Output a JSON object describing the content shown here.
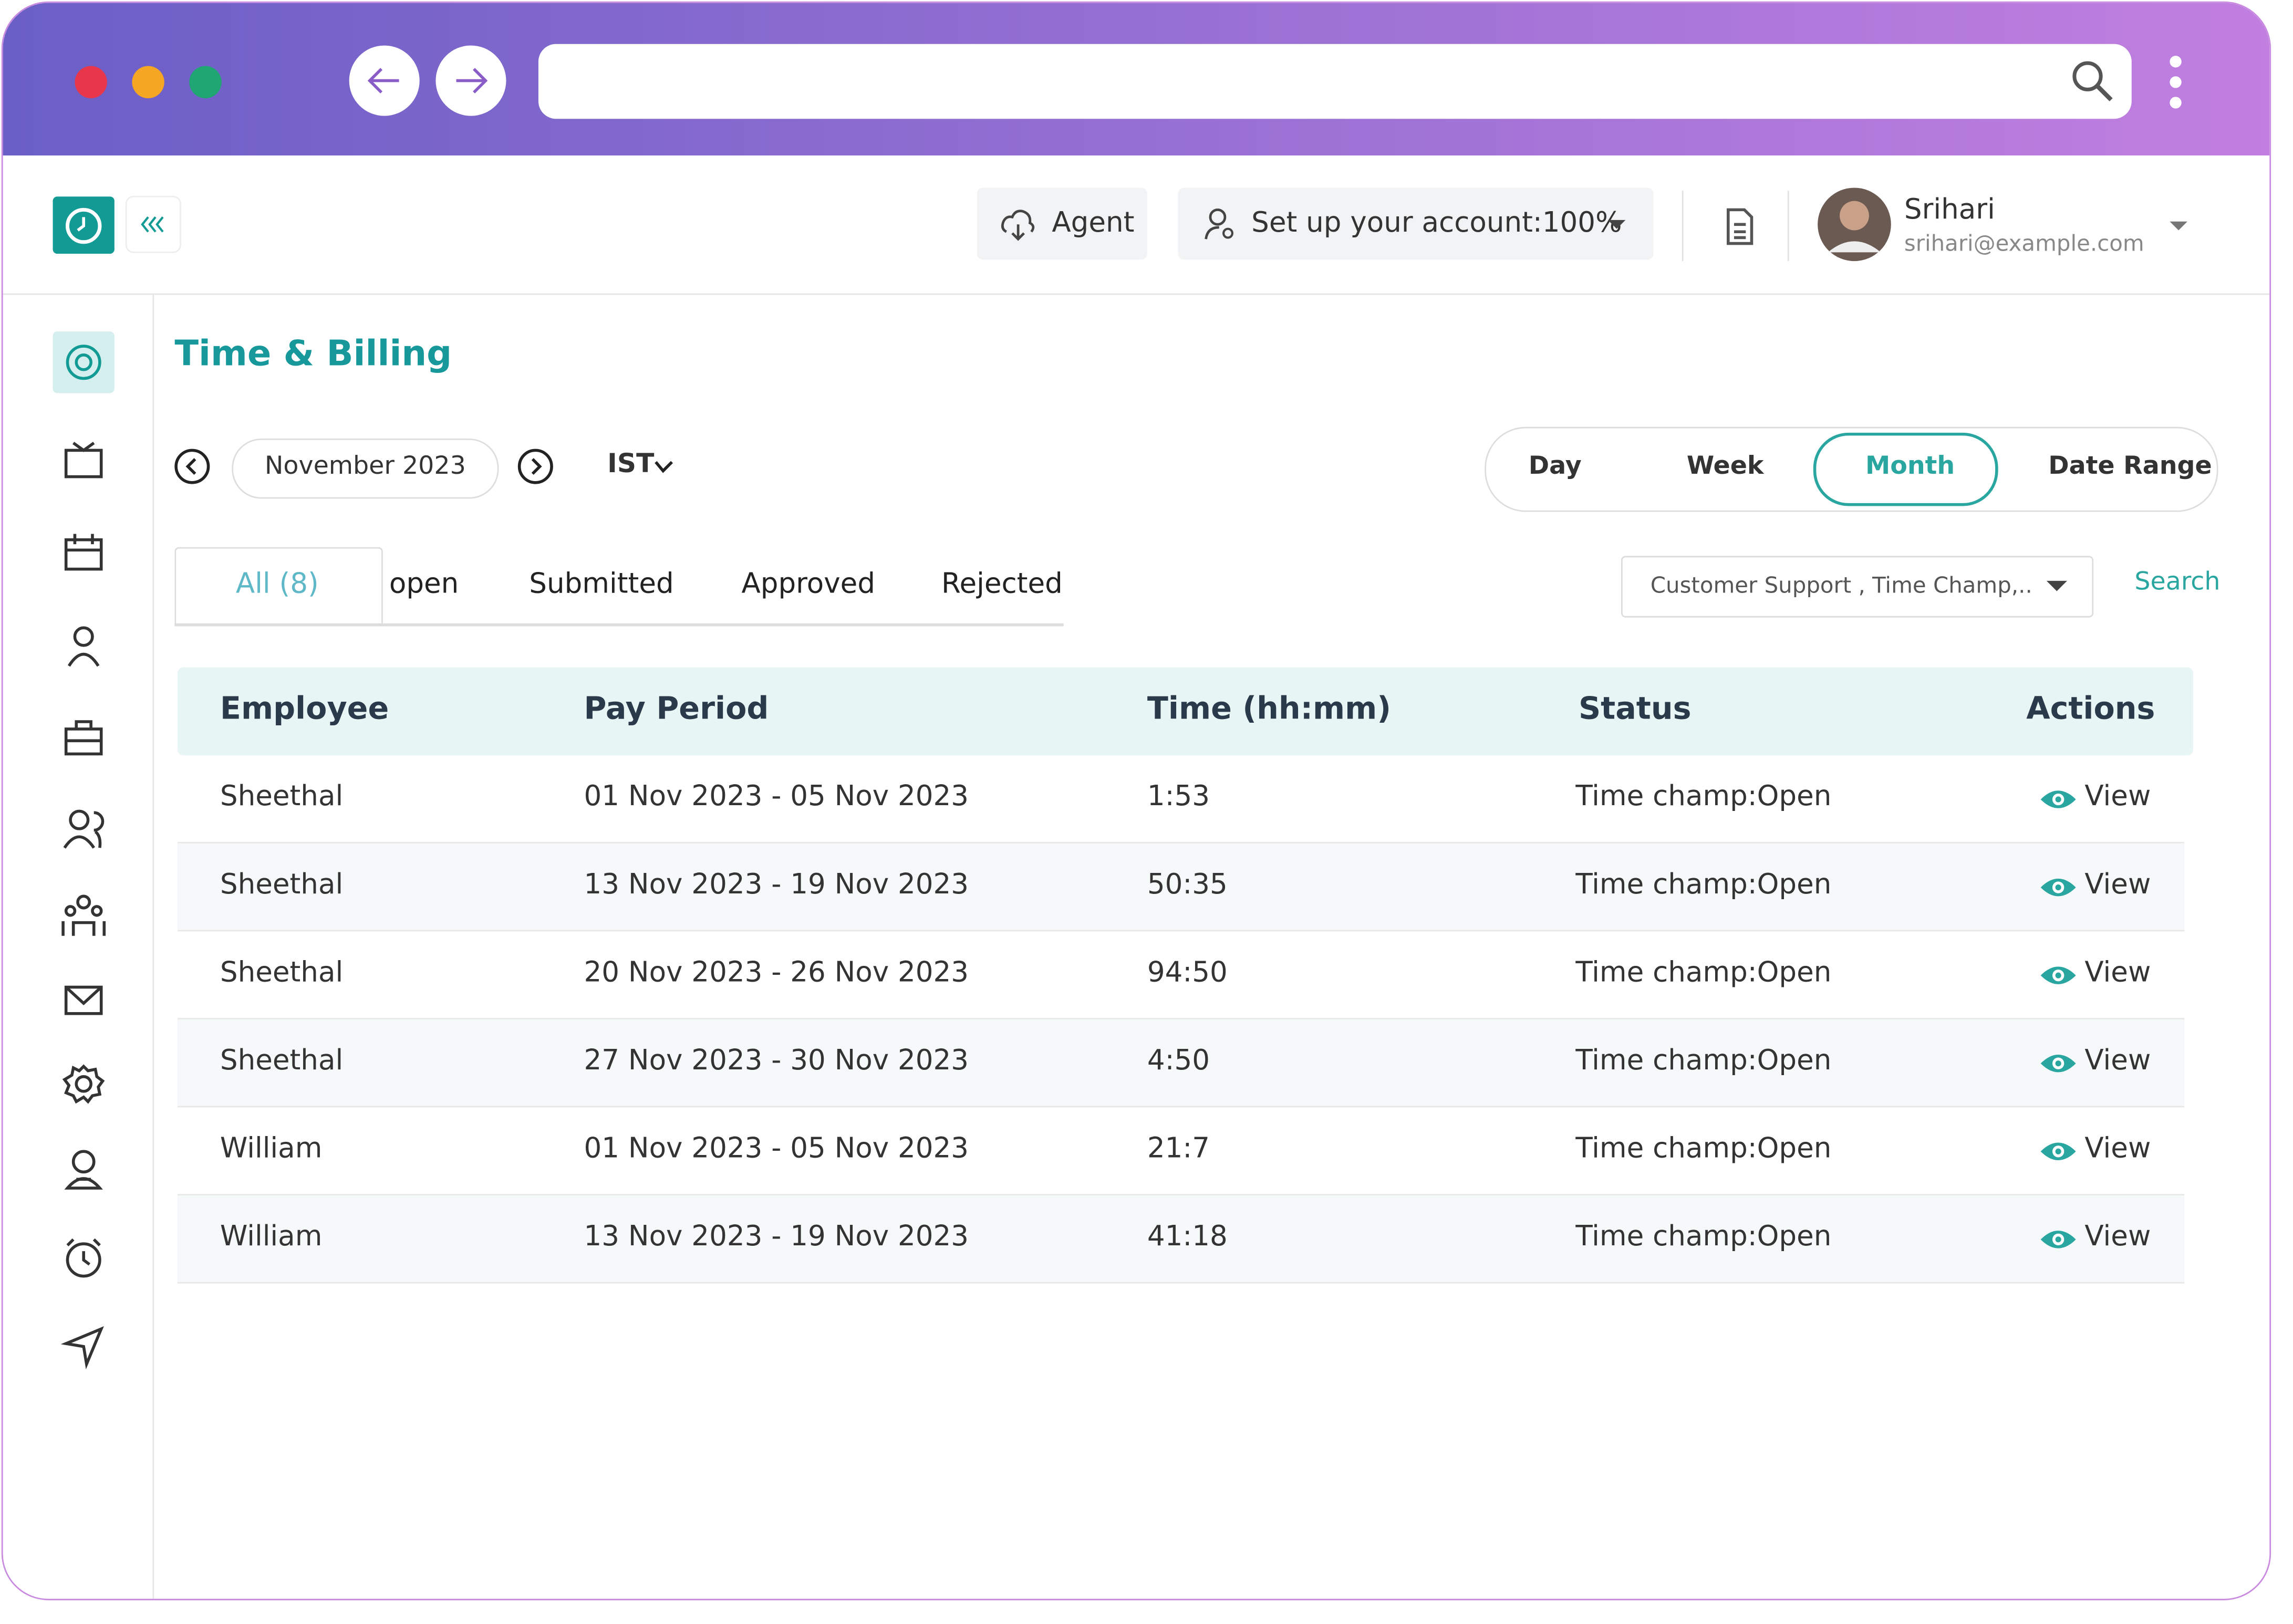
{
  "header": {
    "agent": "Agent",
    "setup": "Set up your account:100%",
    "user_name": "Srihari",
    "user_email": "srihari@example.com"
  },
  "page": {
    "title": "Time & Billing",
    "period": "November 2023",
    "timezone": "IST",
    "views": [
      "Day",
      "Week",
      "Month",
      "Date Range"
    ],
    "status_tabs": [
      "All (8)",
      "open",
      "Submitted",
      "Approved",
      "Rejected"
    ],
    "filter": "Customer Support , Time Champ,..",
    "search": "Search"
  },
  "table": {
    "columns": [
      "Employee",
      "Pay Period",
      "Time (hh:mm)",
      "Status",
      "Actions"
    ],
    "rows": [
      [
        "Sheethal",
        "01 Nov 2023 - 05 Nov 2023",
        "1:53",
        "Time champ:Open",
        "View"
      ],
      [
        "Sheethal",
        "13 Nov 2023 - 19 Nov 2023",
        "50:35",
        "Time champ:Open",
        "View"
      ],
      [
        "Sheethal",
        "20 Nov 2023 - 26 Nov 2023",
        "94:50",
        "Time champ:Open",
        "View"
      ],
      [
        "Sheethal",
        "27 Nov 2023 - 30 Nov 2023",
        "4:50",
        "Time champ:Open",
        "View"
      ],
      [
        "William",
        "01 Nov 2023 - 05 Nov 2023",
        "21:7",
        "Time champ:Open",
        "View"
      ],
      [
        "William",
        "13 Nov 2023 - 19 Nov 2023",
        "41:18",
        "Time champ:Open",
        "View"
      ]
    ]
  }
}
